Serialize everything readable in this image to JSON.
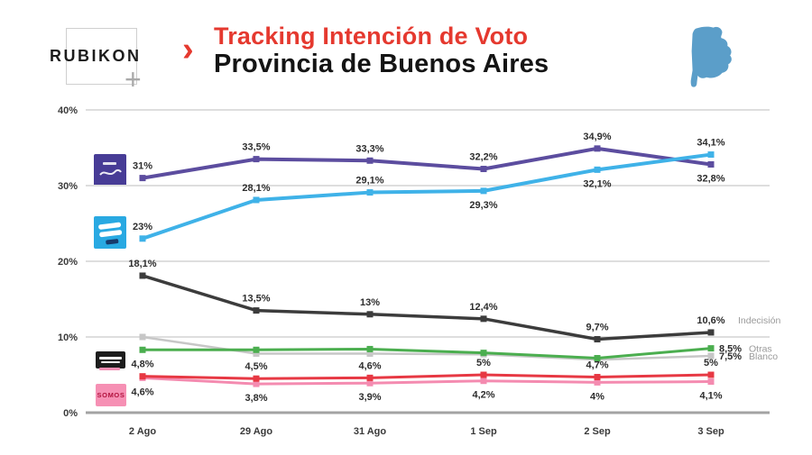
{
  "header": {
    "brand": "RUBIKON",
    "plus_glyph": "+",
    "chevron": "›",
    "title_line1": "Tracking Intención de Voto",
    "title_line2": "Provincia de Buenos Aires",
    "title_color": "#E5392F",
    "province_icon_color": "#5B9EC9"
  },
  "party_logos": [
    {
      "id": "purple-party-logo",
      "color": "#473C96"
    },
    {
      "id": "lightblue-party-logo",
      "color": "#29A9E2"
    },
    {
      "id": "black-party-logo",
      "color": "#1d1d1d",
      "accent": "#F28CB2"
    },
    {
      "id": "pink-party-logo",
      "color": "#F690B4",
      "text": "SOMOS",
      "text_color": "#B2123E"
    }
  ],
  "chart_data": {
    "type": "line",
    "x_categories": [
      "2 Ago",
      "29 Ago",
      "31 Ago",
      "1 Sep",
      "2 Sep",
      "3 Sep"
    ],
    "ylim": [
      0,
      40
    ],
    "ytick_labels": [
      "0%",
      "10%",
      "20%",
      "30%",
      "40%"
    ],
    "grid": true,
    "legend_position": "right-inline",
    "label_color": "#2d2d2d",
    "axis_color": "#3a3a3a",
    "grid_color": "#dedede",
    "series": [
      {
        "id": "purple-party",
        "color": "#5C4D9F",
        "stroke_width": 4,
        "z": 6,
        "values": [
          31,
          33.5,
          33.3,
          32.2,
          34.9,
          32.8
        ],
        "labels": [
          "31%",
          "33,5%",
          "33,3%",
          "32,2%",
          "34,9%",
          "32,8%"
        ],
        "label_side": [
          "above",
          "above",
          "above",
          "above",
          "above",
          "below"
        ]
      },
      {
        "id": "celeste-party",
        "color": "#3FB2E8",
        "stroke_width": 4,
        "z": 7,
        "values": [
          23,
          28.1,
          29.1,
          29.3,
          32.1,
          34.1
        ],
        "labels": [
          "23%",
          "28,1%",
          "29,1%",
          "29,3%",
          "32,1%",
          "34,1%"
        ],
        "label_side": [
          "above",
          "above",
          "above",
          "below",
          "below",
          "above"
        ]
      },
      {
        "id": "indecision",
        "name": "Indecisión",
        "color": "#3C3C3C",
        "stroke_width": 3.5,
        "z": 5,
        "values": [
          18.1,
          13.5,
          13,
          12.4,
          9.7,
          10.6
        ],
        "labels": [
          "18,1%",
          "13,5%",
          "13%",
          "12,4%",
          "9,7%",
          "10,6%"
        ],
        "label_side": [
          "above",
          "above",
          "above",
          "above",
          "above",
          "above"
        ],
        "end_label": "Indecisión"
      },
      {
        "id": "otras",
        "name": "Otras",
        "color": "#4BAE4F",
        "stroke_width": 3,
        "z": 2,
        "values": [
          8.3,
          8.3,
          8.4,
          7.9,
          7.2,
          8.5
        ],
        "labels": [
          "",
          "",
          "",
          "",
          "",
          "8,5%"
        ],
        "label_side": [
          "none",
          "none",
          "none",
          "none",
          "none",
          "right"
        ],
        "end_label": "Otras"
      },
      {
        "id": "blanco",
        "name": "Blanco",
        "color": "#C7C7C7",
        "stroke_width": 2.5,
        "z": 1,
        "values": [
          10,
          7.8,
          7.8,
          7.7,
          7,
          7.5
        ],
        "labels": [
          "",
          "",
          "",
          "",
          "",
          "7,5%"
        ],
        "label_side": [
          "none",
          "none",
          "none",
          "none",
          "none",
          "right"
        ],
        "end_label": "Blanco"
      },
      {
        "id": "red-left-party",
        "color": "#E73843",
        "stroke_width": 3,
        "z": 4,
        "values": [
          4.8,
          4.5,
          4.6,
          5,
          4.7,
          5
        ],
        "labels": [
          "4,8%",
          "4,5%",
          "4,6%",
          "5%",
          "4,7%",
          "5%"
        ],
        "label_side": [
          "above",
          "above",
          "above",
          "above",
          "above",
          "above"
        ]
      },
      {
        "id": "pink-party",
        "color": "#F48BB0",
        "stroke_width": 3,
        "z": 3,
        "values": [
          4.6,
          3.8,
          3.9,
          4.2,
          4,
          4.1
        ],
        "labels": [
          "4,6%",
          "3,8%",
          "3,9%",
          "4,2%",
          "4%",
          "4,1%"
        ],
        "label_side": [
          "below",
          "below",
          "below",
          "below",
          "below",
          "below"
        ]
      }
    ]
  }
}
